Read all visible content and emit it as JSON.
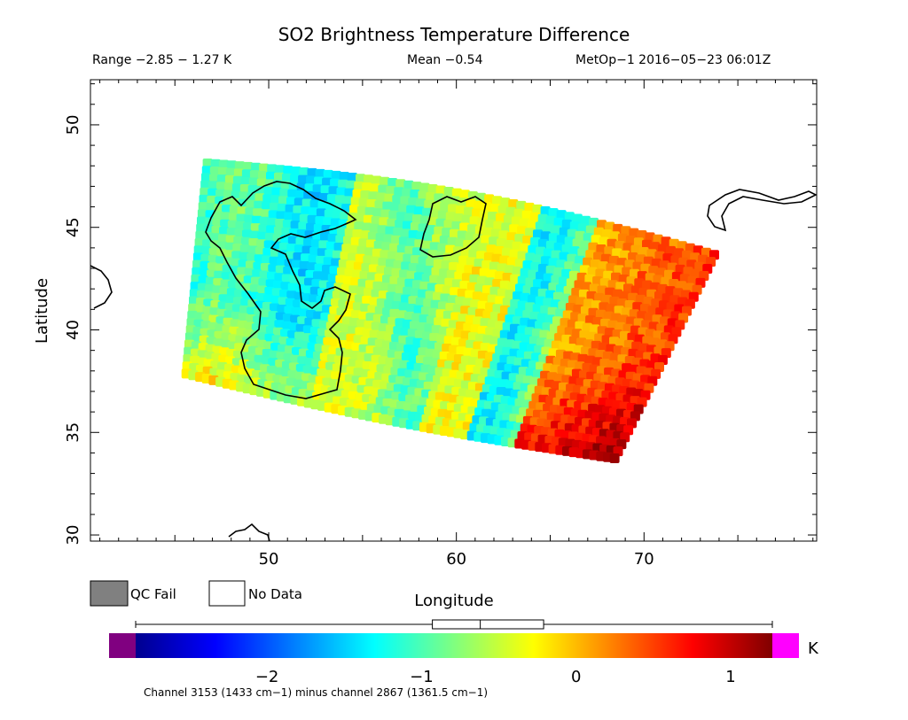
{
  "chart_data": {
    "type": "heatmap",
    "title": "SO2 Brightness Temperature Difference",
    "header": {
      "range": "Range −2.85 − 1.27 K",
      "mean": "Mean −0.54",
      "satellite": "MetOp−1 2016−05−23 06:01Z"
    },
    "xlabel": "Longitude",
    "ylabel": "Latitude",
    "xlim": [
      40.5,
      79.2
    ],
    "ylim": [
      29.7,
      52.2
    ],
    "xticks": [
      50,
      60,
      70
    ],
    "yticks": [
      30,
      35,
      40,
      45,
      50
    ],
    "legend": {
      "qc_fail": "QC Fail",
      "no_data": "No Data"
    },
    "colorbar": {
      "range": [
        -2.85,
        1.27
      ],
      "ticks": [
        {
          "value": -2,
          "label": "−2"
        },
        {
          "value": -1,
          "label": "−1"
        },
        {
          "value": 0,
          "label": "0"
        },
        {
          "value": 1,
          "label": "1"
        }
      ],
      "unit": "K",
      "under_color": "#800080",
      "over_color": "#ff00ff",
      "box": {
        "min": -2.85,
        "q1": -0.93,
        "median": -0.62,
        "q3": -0.21,
        "max": 1.27
      }
    },
    "footnote": "Channel 3153 (1433 cm−1) minus channel 2867 (1361.5 cm−1)",
    "colors": {
      "qc_fail": "#808080",
      "no_data": "#ffffff"
    }
  }
}
